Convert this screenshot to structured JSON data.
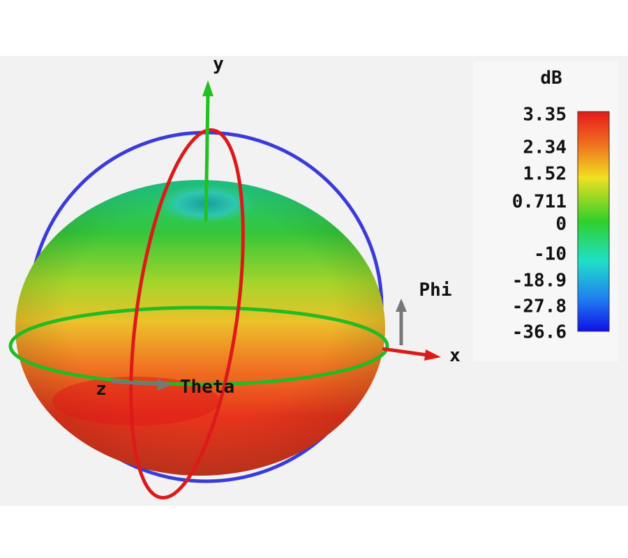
{
  "plot": {
    "axes": {
      "x": "x",
      "y": "y",
      "z": "z"
    },
    "angles": {
      "phi": "Phi",
      "theta": "Theta"
    }
  },
  "colorbar": {
    "unit": "dB",
    "labels": [
      "3.35",
      "2.34",
      "1.52",
      "0.711",
      "0",
      "-10",
      "-18.9",
      "-27.8",
      "-36.6"
    ]
  }
}
